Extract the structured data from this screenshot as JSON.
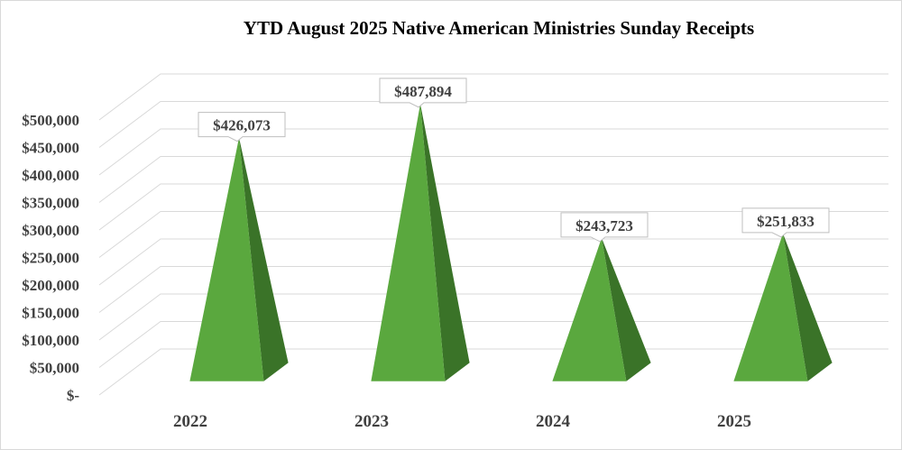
{
  "chart_data": {
    "type": "bar",
    "subtype": "3d-pyramid",
    "title": "YTD August 2025 Native American Ministries Sunday Receipts",
    "categories": [
      "2022",
      "2023",
      "2024",
      "2025"
    ],
    "values": [
      426073,
      487894,
      243723,
      251833
    ],
    "data_labels": [
      "$426,073",
      "$487,894",
      "$243,723",
      "$251,833"
    ],
    "yticks": [
      0,
      50000,
      100000,
      150000,
      200000,
      250000,
      300000,
      350000,
      400000,
      450000,
      500000
    ],
    "ytick_labels": [
      "$-",
      "$50,000",
      "$100,000",
      "$150,000",
      "$200,000",
      "$250,000",
      "$300,000",
      "$350,000",
      "$400,000",
      "$450,000",
      "$500,000"
    ],
    "ylim": [
      0,
      500000
    ],
    "xlabel": "",
    "ylabel": "",
    "grid": true,
    "legend": "none",
    "colors": {
      "front_face": "#5aa83e",
      "side_face": "#3a7328",
      "grid": "#d9d9d9",
      "text": "#404040"
    }
  }
}
